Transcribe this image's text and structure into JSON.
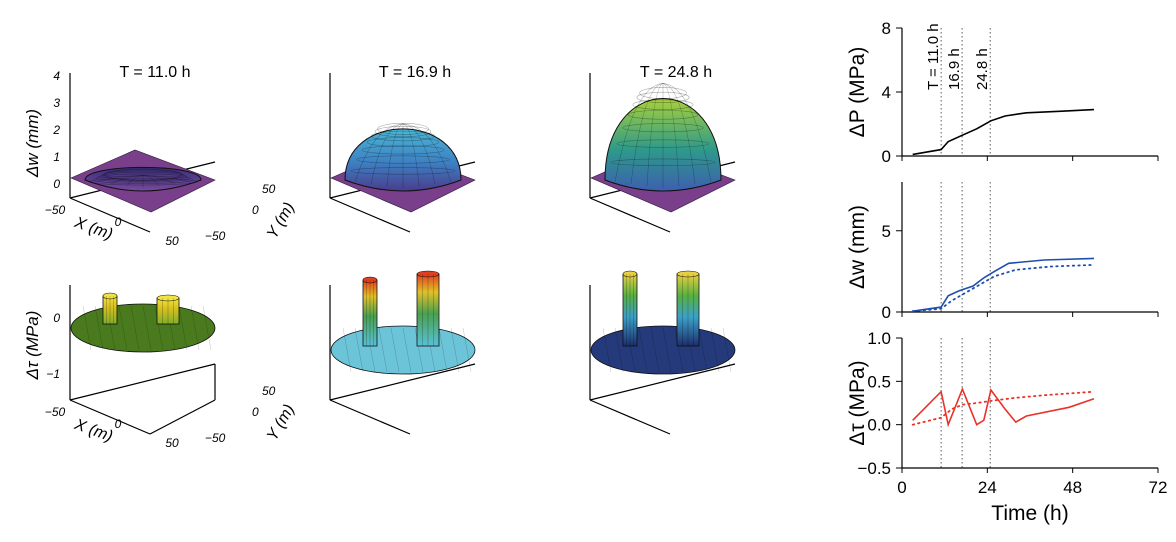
{
  "panels3d": {
    "titles": [
      "T = 11.0 h",
      "T = 16.9 h",
      "T = 24.8 h"
    ],
    "dw_label": "Δw (mm)",
    "dtau_label": "Δτ (MPa)",
    "x_label": "X (m)",
    "y_label": "Y (m)",
    "dw_ticks": [
      "4",
      "3",
      "2",
      "1",
      "0"
    ],
    "dtau_ticks": [
      "0",
      "−1"
    ],
    "x_ticks": [
      "−50",
      "0",
      "50"
    ],
    "y_ticks": [
      "50",
      "0",
      "−50"
    ],
    "dome_peak_mm": [
      0.4,
      2.3,
      3.8
    ],
    "dome_colors": [
      [
        "#3a2f7a",
        "#5a3f90",
        "#7a4a9a"
      ],
      [
        "#4bb7d6",
        "#3d7fc2",
        "#4a3c8c"
      ],
      [
        "#a8d13a",
        "#2e9a8a",
        "#3d5fb0"
      ]
    ],
    "disc_colors": [
      "#4a7a1e",
      "#6cc4d8",
      "#243a7a"
    ]
  },
  "chart_data": [
    {
      "type": "line",
      "ylabel": "ΔP (MPa)",
      "ylim": [
        0,
        8
      ],
      "yticks": [
        "0",
        "4",
        "8"
      ],
      "xlim": [
        0,
        72
      ],
      "vlines": [
        11.0,
        16.9,
        24.8
      ],
      "vline_labels": [
        "T = 11.0 h",
        "16.9 h",
        "24.8 h"
      ],
      "series": [
        {
          "color": "#000000",
          "style": "solid",
          "x": [
            3,
            11,
            13,
            17,
            21,
            25,
            29,
            35,
            45,
            54
          ],
          "y": [
            0.1,
            0.4,
            0.9,
            1.3,
            1.7,
            2.2,
            2.5,
            2.7,
            2.8,
            2.9
          ]
        }
      ]
    },
    {
      "type": "line",
      "ylabel": "Δw (mm)",
      "ylim": [
        0,
        8
      ],
      "yticks": [
        "0",
        "5"
      ],
      "xlim": [
        0,
        72
      ],
      "vlines": [
        11.0,
        16.9,
        24.8
      ],
      "series": [
        {
          "color": "#1f4eb0",
          "style": "solid",
          "x": [
            3,
            11,
            13,
            16,
            20,
            23,
            26,
            30,
            40,
            54
          ],
          "y": [
            0.05,
            0.3,
            1.0,
            1.3,
            1.6,
            2.1,
            2.5,
            3.0,
            3.2,
            3.3
          ]
        },
        {
          "color": "#1f4eb0",
          "style": "dotted",
          "x": [
            3,
            11,
            14,
            18,
            22,
            26,
            32,
            42,
            54
          ],
          "y": [
            0.05,
            0.2,
            0.7,
            1.2,
            1.7,
            2.2,
            2.6,
            2.8,
            2.9
          ]
        }
      ]
    },
    {
      "type": "line",
      "ylabel": "Δτ (MPa)",
      "ylim": [
        -0.5,
        1.0
      ],
      "yticks": [
        "1.0",
        "0.5",
        "0.0",
        "−0.5"
      ],
      "xlim": [
        0,
        72
      ],
      "xticks": [
        "0",
        "24",
        "48",
        "72"
      ],
      "xlabel": "Time (h)",
      "vlines": [
        11.0,
        16.9,
        24.8
      ],
      "series": [
        {
          "color": "#e8322a",
          "style": "solid",
          "x": [
            3,
            11,
            13,
            17,
            21,
            23,
            25,
            29,
            32,
            35,
            47,
            54
          ],
          "y": [
            0.05,
            0.38,
            0.0,
            0.41,
            0.0,
            0.05,
            0.4,
            0.18,
            0.03,
            0.1,
            0.2,
            0.3
          ]
        },
        {
          "color": "#e8322a",
          "style": "dotted",
          "x": [
            3,
            11,
            14,
            17,
            21,
            26,
            32,
            40,
            54
          ],
          "y": [
            0.0,
            0.08,
            0.18,
            0.23,
            0.25,
            0.28,
            0.31,
            0.34,
            0.38
          ]
        }
      ]
    }
  ]
}
